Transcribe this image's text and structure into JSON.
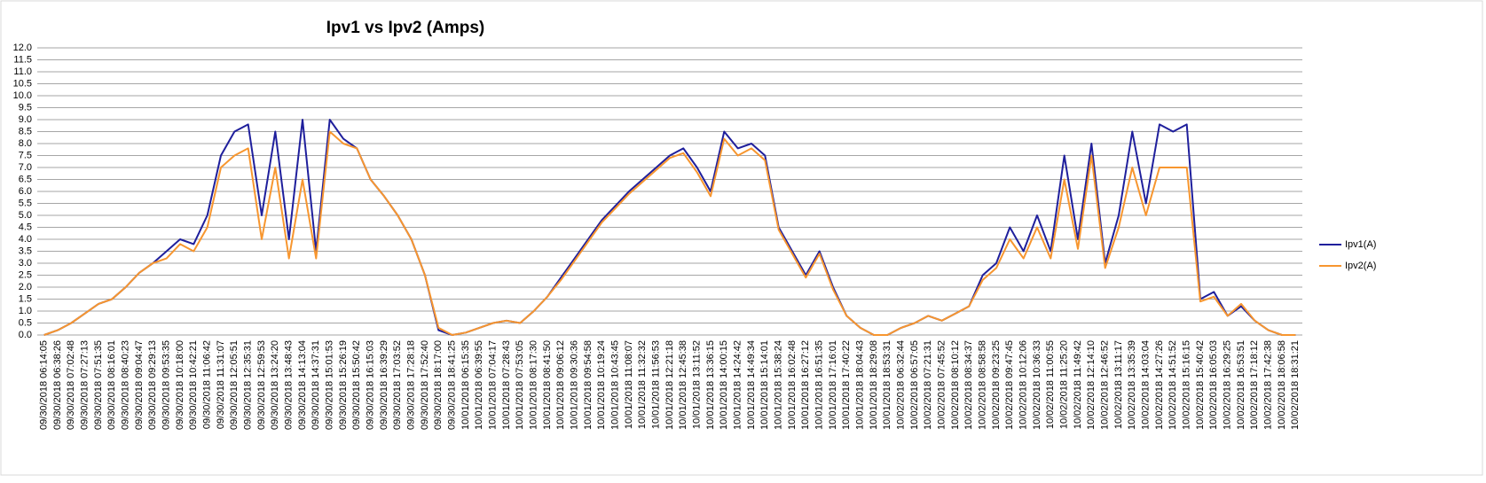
{
  "chart_data": {
    "type": "line",
    "title": "Ipv1 vs Ipv2 (Amps)",
    "categories": [
      "09/30/2018 06:14:05",
      "09/30/2018 06:38:26",
      "09/30/2018 07:02:48",
      "09/30/2018 07:27:13",
      "09/30/2018 07:51:35",
      "09/30/2018 08:16:01",
      "09/30/2018 08:40:23",
      "09/30/2018 09:04:47",
      "09/30/2018 09:29:13",
      "09/30/2018 09:53:35",
      "09/30/2018 10:18:00",
      "09/30/2018 10:42:21",
      "09/30/2018 11:06:42",
      "09/30/2018 11:31:07",
      "09/30/2018 12:05:51",
      "09/30/2018 12:35:31",
      "09/30/2018 12:59:53",
      "09/30/2018 13:24:20",
      "09/30/2018 13:48:43",
      "09/30/2018 14:13:04",
      "09/30/2018 14:37:31",
      "09/30/2018 15:01:53",
      "09/30/2018 15:26:19",
      "09/30/2018 15:50:42",
      "09/30/2018 16:15:03",
      "09/30/2018 16:39:29",
      "09/30/2018 17:03:52",
      "09/30/2018 17:28:18",
      "09/30/2018 17:52:40",
      "09/30/2018 18:17:00",
      "09/30/2018 18:41:25",
      "10/01/2018 06:15:35",
      "10/01/2018 06:39:55",
      "10/01/2018 07:04:17",
      "10/01/2018 07:28:43",
      "10/01/2018 07:53:05",
      "10/01/2018 08:17:30",
      "10/01/2018 08:41:50",
      "10/01/2018 09:06:12",
      "10/01/2018 09:30:36",
      "10/01/2018 09:54:58",
      "10/01/2018 10:19:24",
      "10/01/2018 10:43:45",
      "10/01/2018 11:08:07",
      "10/01/2018 11:32:32",
      "10/01/2018 11:56:53",
      "10/01/2018 12:21:18",
      "10/01/2018 12:45:38",
      "10/01/2018 13:11:52",
      "10/01/2018 13:36:15",
      "10/01/2018 14:00:15",
      "10/01/2018 14:24:42",
      "10/01/2018 14:49:34",
      "10/01/2018 15:14:01",
      "10/01/2018 15:38:24",
      "10/01/2018 16:02:48",
      "10/01/2018 16:27:12",
      "10/01/2018 16:51:35",
      "10/01/2018 17:16:01",
      "10/01/2018 17:40:22",
      "10/01/2018 18:04:43",
      "10/01/2018 18:29:08",
      "10/01/2018 18:53:31",
      "10/02/2018 06:32:44",
      "10/02/2018 06:57:05",
      "10/02/2018 07:21:31",
      "10/02/2018 07:45:52",
      "10/02/2018 08:10:12",
      "10/02/2018 08:34:37",
      "10/02/2018 08:58:58",
      "10/02/2018 09:23:25",
      "10/02/2018 09:47:45",
      "10/02/2018 10:12:06",
      "10/02/2018 10:36:33",
      "10/02/2018 11:00:55",
      "10/02/2018 11:25:20",
      "10/02/2018 11:49:42",
      "10/02/2018 12:14:10",
      "10/02/2018 12:46:52",
      "10/02/2018 13:11:17",
      "10/02/2018 13:35:39",
      "10/02/2018 14:03:04",
      "10/02/2018 14:27:26",
      "10/02/2018 14:51:52",
      "10/02/2018 15:16:15",
      "10/02/2018 15:40:42",
      "10/02/2018 16:05:03",
      "10/02/2018 16:29:25",
      "10/02/2018 16:53:51",
      "10/02/2018 17:18:12",
      "10/02/2018 17:42:38",
      "10/02/2018 18:06:58",
      "10/02/2018 18:31:21"
    ],
    "series": [
      {
        "name": "Ipv1(A)",
        "color": "#1f1f9c",
        "values": [
          0,
          0.2,
          0.5,
          0.9,
          1.3,
          1.5,
          2.0,
          2.6,
          3.0,
          3.5,
          4.0,
          3.8,
          5.0,
          7.5,
          8.5,
          8.8,
          5.0,
          8.5,
          4.0,
          9.0,
          3.5,
          9.0,
          8.2,
          7.8,
          6.5,
          5.8,
          5.0,
          4.0,
          2.5,
          0.2,
          0,
          0.1,
          0.3,
          0.5,
          0.6,
          0.5,
          1.0,
          1.6,
          2.4,
          3.2,
          4.0,
          4.8,
          5.4,
          6.0,
          6.5,
          7.0,
          7.5,
          7.8,
          7.0,
          6.0,
          8.5,
          7.8,
          8.0,
          7.5,
          4.5,
          3.5,
          2.5,
          3.5,
          2.0,
          0.8,
          0.3,
          0,
          0,
          0.3,
          0.5,
          0.8,
          0.6,
          0.9,
          1.2,
          2.5,
          3.0,
          4.5,
          3.5,
          5.0,
          3.5,
          7.5,
          4.0,
          8.0,
          3.0,
          5.0,
          8.5,
          5.5,
          8.8,
          8.5,
          8.8,
          1.5,
          1.8,
          0.8,
          1.2,
          0.6,
          0.2,
          0,
          0
        ]
      },
      {
        "name": "Ipv2(A)",
        "color": "#f7962f",
        "values": [
          0,
          0.2,
          0.5,
          0.9,
          1.3,
          1.5,
          2.0,
          2.6,
          3.0,
          3.2,
          3.8,
          3.5,
          4.5,
          7.0,
          7.5,
          7.8,
          4.0,
          7.0,
          3.2,
          6.5,
          3.2,
          8.5,
          8.0,
          7.8,
          6.5,
          5.8,
          5.0,
          4.0,
          2.5,
          0.3,
          0,
          0.1,
          0.3,
          0.5,
          0.6,
          0.5,
          1.0,
          1.6,
          2.3,
          3.1,
          3.9,
          4.7,
          5.3,
          5.9,
          6.4,
          6.9,
          7.4,
          7.6,
          6.8,
          5.8,
          8.2,
          7.5,
          7.8,
          7.3,
          4.4,
          3.4,
          2.4,
          3.4,
          1.9,
          0.8,
          0.3,
          0,
          0,
          0.3,
          0.5,
          0.8,
          0.6,
          0.9,
          1.2,
          2.3,
          2.8,
          4.0,
          3.2,
          4.5,
          3.2,
          6.5,
          3.6,
          7.5,
          2.8,
          4.5,
          7.0,
          5.0,
          7.0,
          7.0,
          7.0,
          1.4,
          1.6,
          0.8,
          1.3,
          0.6,
          0.2,
          0,
          0
        ]
      }
    ],
    "ylim": [
      0,
      12
    ],
    "yticks": [
      {
        "value": 0,
        "label": "0.0"
      },
      0.5,
      {
        "value": 1,
        "label": "1.0"
      },
      1.5,
      {
        "value": 2,
        "label": "2.0"
      },
      2.5,
      {
        "value": 3,
        "label": "3.0"
      },
      3.5,
      {
        "value": 4,
        "label": "4.0"
      },
      4.5,
      {
        "value": 5,
        "label": "5.0"
      },
      5.5,
      {
        "value": 6,
        "label": "6.0"
      },
      6.5,
      {
        "value": 7,
        "label": "7.0"
      },
      7.5,
      {
        "value": 8,
        "label": "8.0"
      },
      8.5,
      {
        "value": 9,
        "label": "9.0"
      },
      9.5,
      {
        "value": 10,
        "label": "10.0"
      },
      10.5,
      {
        "value": 11,
        "label": "11.0"
      },
      11.5,
      {
        "value": 12,
        "label": "12.0"
      }
    ],
    "grid": true,
    "legend": "right"
  }
}
